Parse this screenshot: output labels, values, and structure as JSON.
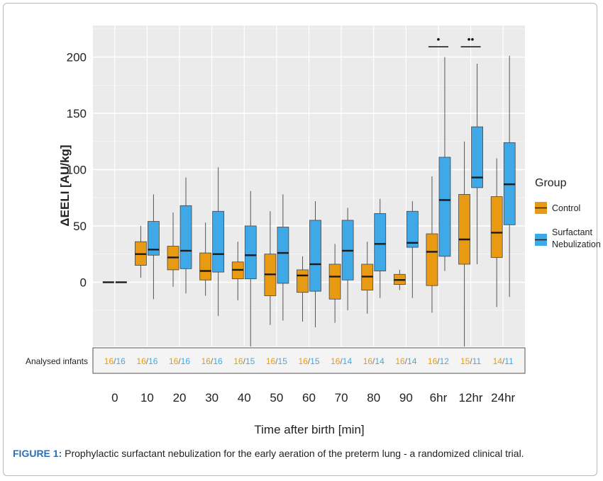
{
  "colors": {
    "control": "#e79a12",
    "surfactant": "#3fa9e8",
    "panel": "#ebebeb",
    "count_control": "#e79a12",
    "count_surfactant": "#3fa9e8"
  },
  "chart_data": {
    "type": "box",
    "xlabel": "Time after birth [min]",
    "ylabel": "ΔEELI [AU/kg]",
    "ylim": [
      -57,
      228
    ],
    "yticks": [
      0,
      50,
      100,
      150,
      200
    ],
    "grid": true,
    "legend": {
      "title": "Group",
      "position": "right"
    },
    "categories": [
      "0",
      "10",
      "20",
      "30",
      "40",
      "50",
      "60",
      "70",
      "80",
      "90",
      "6hr",
      "12hr",
      "24hr"
    ],
    "series": [
      {
        "name": "Control",
        "color": "#e79a12",
        "boxes": [
          {
            "min": 0,
            "q1": 0,
            "median": 0,
            "q3": 0,
            "max": 0
          },
          {
            "min": 4,
            "q1": 15,
            "median": 25,
            "q3": 36,
            "max": 50
          },
          {
            "min": -4,
            "q1": 11,
            "median": 22,
            "q3": 32,
            "max": 62
          },
          {
            "min": -12,
            "q1": 2,
            "median": 10,
            "q3": 26,
            "max": 53
          },
          {
            "min": -16,
            "q1": 3,
            "median": 11,
            "q3": 18,
            "max": 36
          },
          {
            "min": -38,
            "q1": -12,
            "median": 7,
            "q3": 25,
            "max": 63
          },
          {
            "min": -35,
            "q1": -9,
            "median": 6,
            "q3": 11,
            "max": 23
          },
          {
            "min": -36,
            "q1": -15,
            "median": 5,
            "q3": 16,
            "max": 34
          },
          {
            "min": -28,
            "q1": -7,
            "median": 5,
            "q3": 16,
            "max": 36
          },
          {
            "min": -7,
            "q1": -2,
            "median": 2,
            "q3": 7,
            "max": 11
          },
          {
            "min": -27,
            "q1": -3,
            "median": 27,
            "q3": 43,
            "max": 94
          },
          {
            "min": -57,
            "q1": 16,
            "median": 38,
            "q3": 78,
            "max": 125
          },
          {
            "min": -22,
            "q1": 22,
            "median": 44,
            "q3": 76,
            "max": 110
          }
        ]
      },
      {
        "name": "Surfactant Nebulization",
        "color": "#3fa9e8",
        "boxes": [
          {
            "min": 0,
            "q1": 0,
            "median": 0,
            "q3": 0,
            "max": 0
          },
          {
            "min": -15,
            "q1": 24,
            "median": 29,
            "q3": 54,
            "max": 78
          },
          {
            "min": -10,
            "q1": 12,
            "median": 28,
            "q3": 68,
            "max": 93
          },
          {
            "min": -30,
            "q1": 9,
            "median": 25,
            "q3": 63,
            "max": 102
          },
          {
            "min": -57,
            "q1": 3,
            "median": 24,
            "q3": 50,
            "max": 81
          },
          {
            "min": -34,
            "q1": -1,
            "median": 26,
            "q3": 49,
            "max": 78
          },
          {
            "min": -40,
            "q1": -8,
            "median": 16,
            "q3": 55,
            "max": 72
          },
          {
            "min": -25,
            "q1": 2,
            "median": 28,
            "q3": 55,
            "max": 66
          },
          {
            "min": -14,
            "q1": 10,
            "median": 34,
            "q3": 61,
            "max": 74
          },
          {
            "min": -14,
            "q1": 31,
            "median": 35,
            "q3": 63,
            "max": 72
          },
          {
            "min": 10,
            "q1": 23,
            "median": 73,
            "q3": 111,
            "max": 200
          },
          {
            "min": 16,
            "q1": 84,
            "median": 93,
            "q3": 138,
            "max": 194
          },
          {
            "min": -13,
            "q1": 51,
            "median": 87,
            "q3": 124,
            "max": 201
          }
        ]
      }
    ],
    "annotations": [
      {
        "category": "6hr",
        "text": "•"
      },
      {
        "category": "12hr",
        "text": "••"
      }
    ],
    "counts_label": "Analysed infants",
    "counts": [
      [
        "16",
        "16"
      ],
      [
        "16",
        "16"
      ],
      [
        "16",
        "16"
      ],
      [
        "16",
        "16"
      ],
      [
        "16",
        "15"
      ],
      [
        "16",
        "15"
      ],
      [
        "16",
        "15"
      ],
      [
        "16",
        "14"
      ],
      [
        "16",
        "14"
      ],
      [
        "16",
        "14"
      ],
      [
        "16",
        "12"
      ],
      [
        "15",
        "11"
      ],
      [
        "14",
        "11"
      ]
    ]
  },
  "caption": {
    "label": "FIGURE 1:",
    "text": " Prophylactic surfactant nebulization for the early aeration of the preterm lung - a randomized clinical trial."
  }
}
